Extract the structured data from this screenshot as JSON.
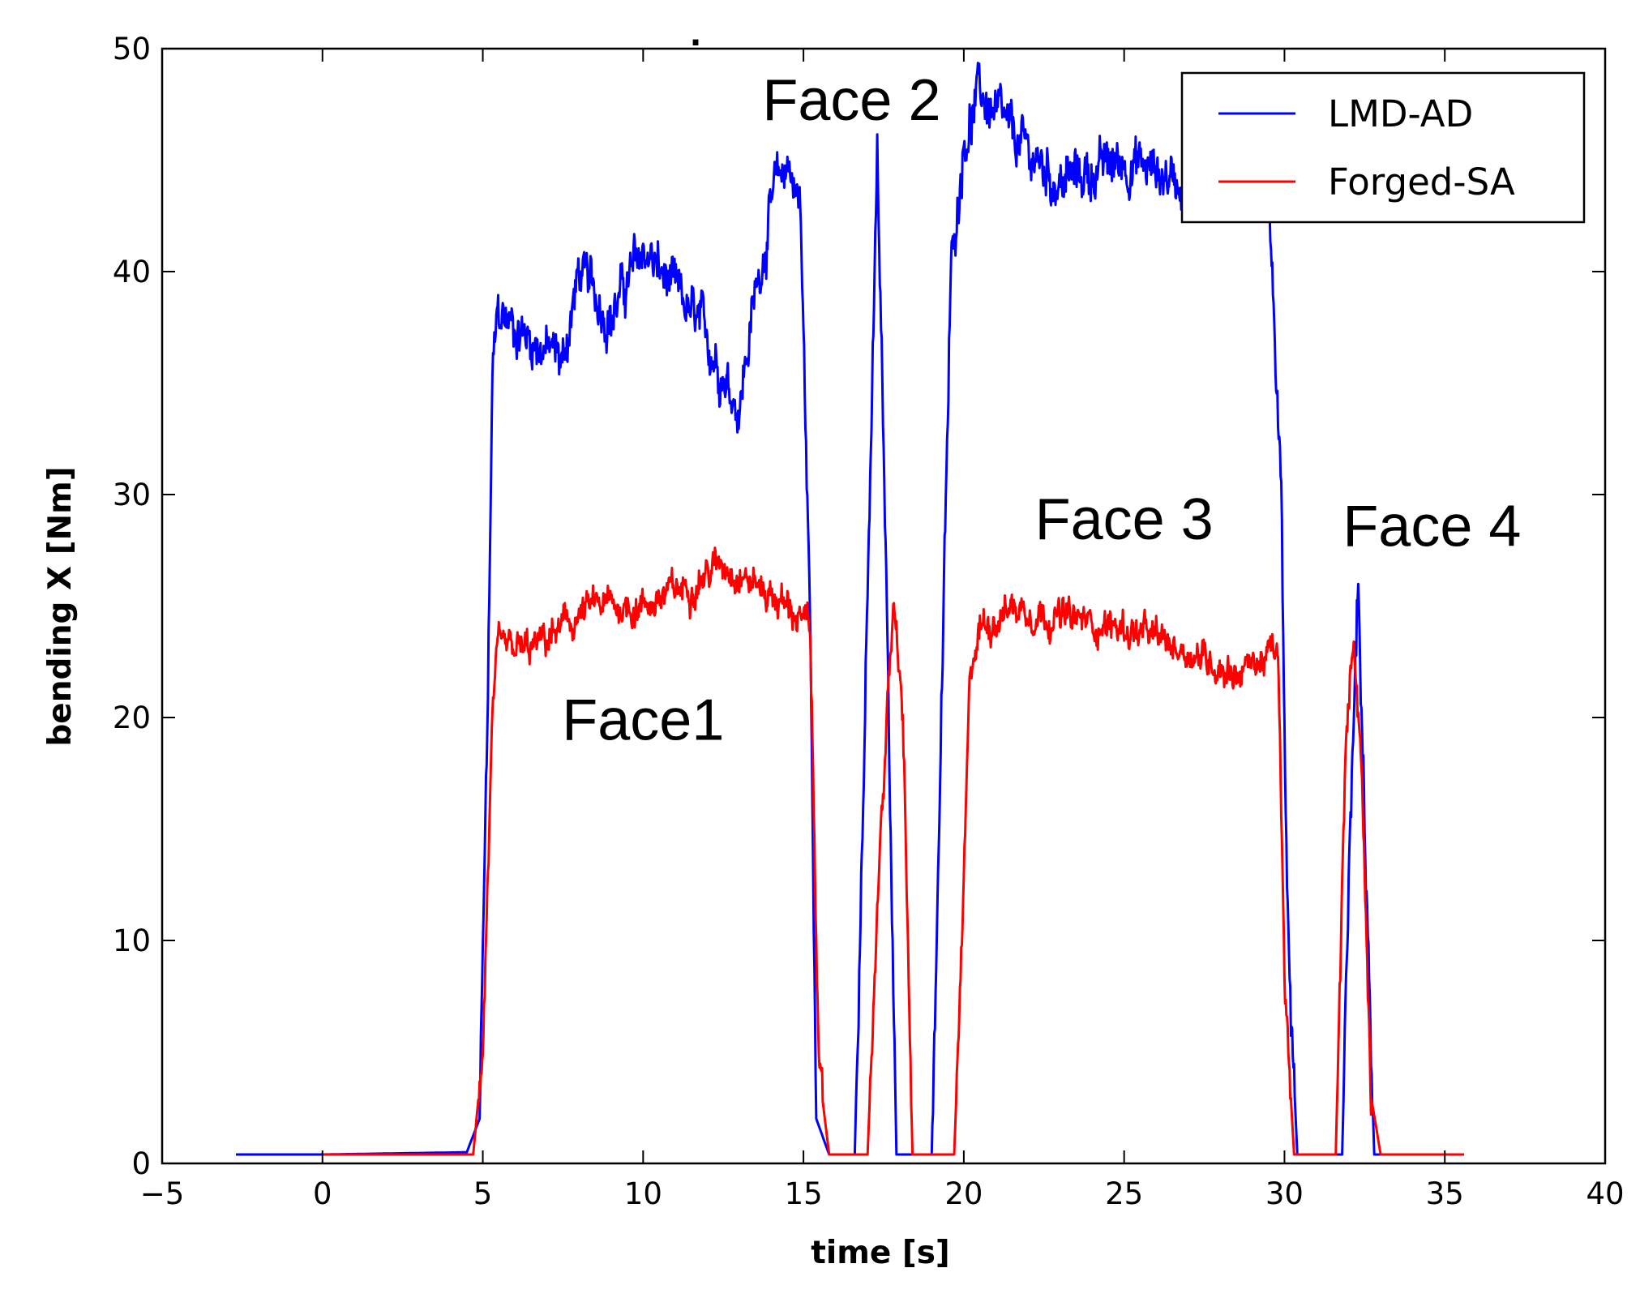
{
  "chart_data": {
    "type": "line",
    "title": ".",
    "xlabel": "time [s]",
    "ylabel": "bending X [Nm]",
    "xlim": [
      -5,
      40
    ],
    "ylim": [
      0,
      50
    ],
    "xticks": [
      "-5",
      "0",
      "5",
      "10",
      "15",
      "20",
      "25",
      "30",
      "35",
      "40"
    ],
    "yticks": [
      "0",
      "10",
      "20",
      "30",
      "40",
      "50"
    ],
    "grid": false,
    "legend_position": "top-right",
    "series": [
      {
        "name": "LMD-AD",
        "color": "#0000ff",
        "x": [
          -2.7,
          0,
          4.5,
          4.9,
          5.15,
          5.3,
          5.45,
          5.6,
          6.5,
          7.5,
          8,
          9,
          10,
          11,
          12,
          13,
          13.5,
          14,
          14.5,
          14.9,
          15.2,
          15.4,
          15.8,
          16.6,
          17.0,
          17.3,
          17.6,
          17.9,
          18.3,
          19.0,
          19.3,
          19.6,
          20.0,
          20.5,
          21.5,
          23,
          25,
          27,
          28.5,
          29.5,
          29.9,
          30.1,
          30.4,
          31.8,
          32.05,
          32.3,
          32.55,
          32.8,
          33.3,
          35.5
        ],
        "y": [
          0.4,
          0.4,
          0.5,
          2,
          20,
          35,
          38,
          38,
          37,
          36,
          40,
          38,
          41,
          39,
          37,
          34,
          39,
          43,
          45,
          43,
          25,
          2,
          0.4,
          0.4,
          25,
          45,
          25,
          0.4,
          0.4,
          0.4,
          20,
          40,
          46,
          48,
          46,
          44,
          45,
          44,
          46,
          44,
          30,
          10,
          0.4,
          0.4,
          15,
          26,
          12,
          0.4,
          0.4,
          0.4
        ],
        "noise": 0.9
      },
      {
        "name": "Forged-SA",
        "color": "#ff0000",
        "x": [
          0,
          4.7,
          5.0,
          5.3,
          5.5,
          6.5,
          7.5,
          8.5,
          10,
          11.5,
          12.5,
          13.5,
          14.5,
          15.2,
          15.5,
          15.8,
          16.6,
          17.0,
          17.4,
          17.8,
          18.1,
          18.4,
          19.7,
          19.95,
          20.2,
          20.5,
          21.5,
          23,
          25,
          27,
          28.5,
          29.8,
          30.0,
          30.3,
          31.6,
          31.9,
          32.15,
          32.4,
          32.7,
          33.0,
          35.6
        ],
        "y": [
          0.4,
          0.4,
          5,
          20,
          23,
          23,
          24,
          25,
          25,
          26,
          27,
          26,
          25,
          24,
          4,
          0.4,
          0.4,
          0.4,
          15,
          25,
          20,
          0.4,
          0.4,
          10,
          22,
          24,
          25,
          24.5,
          24,
          23,
          22,
          23,
          8,
          0.4,
          0.4,
          18,
          24,
          18,
          3,
          0.4,
          0.4
        ],
        "noise": 0.6
      }
    ],
    "annotations": [
      {
        "text": "Face1",
        "x": 10.0,
        "y": 19.0
      },
      {
        "text": "Face 2",
        "x": 16.5,
        "y": 46.8
      },
      {
        "text": "Face 3",
        "x": 25.0,
        "y": 28.0
      },
      {
        "text": "Face 4",
        "x": 34.6,
        "y": 27.7
      }
    ]
  }
}
